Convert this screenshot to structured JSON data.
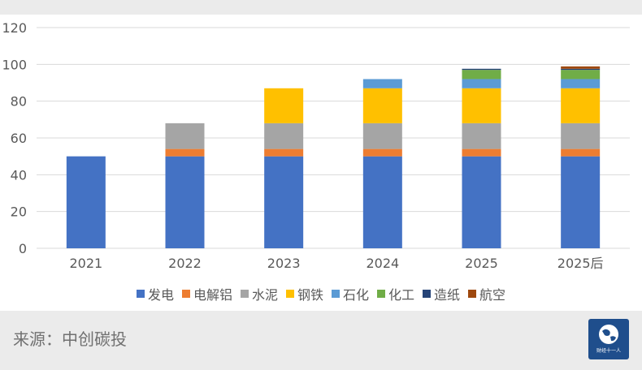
{
  "chart_data": {
    "type": "bar",
    "stacked": true,
    "categories": [
      "2021",
      "2022",
      "2023",
      "2024",
      "2025",
      "2025后"
    ],
    "series": [
      {
        "name": "发电",
        "color": "#4472c4",
        "values": [
          50,
          50,
          50,
          50,
          50,
          50
        ]
      },
      {
        "name": "电解铝",
        "color": "#ed7d31",
        "values": [
          0,
          4,
          4,
          4,
          4,
          4
        ]
      },
      {
        "name": "水泥",
        "color": "#a5a5a5",
        "values": [
          0,
          14,
          14,
          14,
          14,
          14
        ]
      },
      {
        "name": "钢铁",
        "color": "#ffc000",
        "values": [
          0,
          0,
          19,
          19,
          19,
          19
        ]
      },
      {
        "name": "石化",
        "color": "#5b9bd5",
        "values": [
          0,
          0,
          0,
          5,
          5,
          5
        ]
      },
      {
        "name": "化工",
        "color": "#70ad47",
        "values": [
          0,
          0,
          0,
          0,
          5,
          5
        ]
      },
      {
        "name": "造纸",
        "color": "#264478",
        "values": [
          0,
          0,
          0,
          0,
          0.6,
          0.6
        ]
      },
      {
        "name": "航空",
        "color": "#9e480e",
        "values": [
          0,
          0,
          0,
          0,
          0,
          1.3
        ]
      }
    ],
    "ylim": [
      0,
      120
    ],
    "yticks": [
      0,
      20,
      40,
      60,
      80,
      100,
      120
    ],
    "grid": true,
    "legend_position": "bottom",
    "title": "",
    "xlabel": "",
    "ylabel": ""
  },
  "footer": {
    "source_text": "来源：中创碳投",
    "logo_text": "财经十一人"
  }
}
